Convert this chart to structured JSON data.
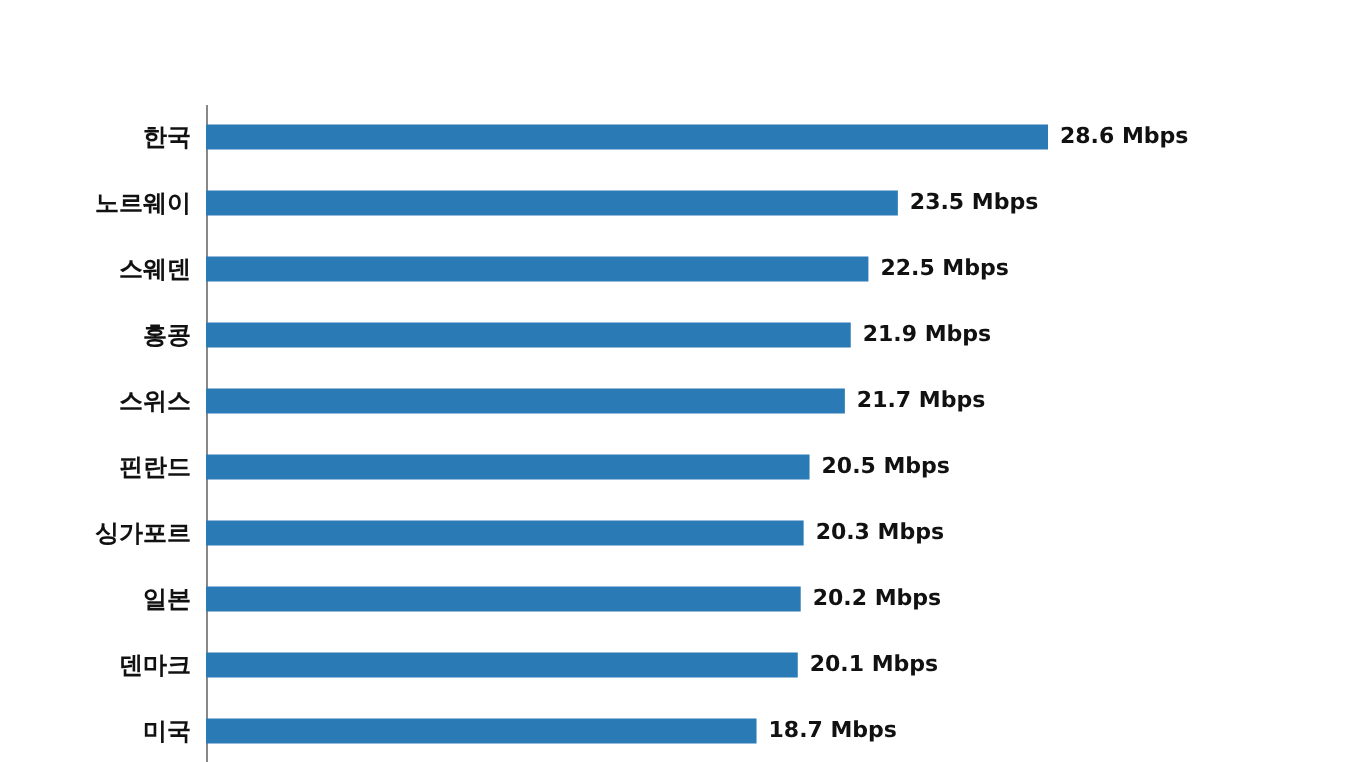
{
  "chart_data": {
    "type": "bar",
    "orientation": "horizontal",
    "categories": [
      "한국",
      "노르웨이",
      "스웨덴",
      "홍콩",
      "스위스",
      "핀란드",
      "싱가포르",
      "일본",
      "덴마크",
      "미국"
    ],
    "values": [
      28.6,
      23.5,
      22.5,
      21.9,
      21.7,
      20.5,
      20.3,
      20.2,
      20.1,
      18.7
    ],
    "value_labels": [
      "28.6 Mbps",
      "23.5 Mbps",
      "22.5 Mbps",
      "21.9 Mbps",
      "21.7 Mbps",
      "20.5 Mbps",
      "20.3 Mbps",
      "20.2 Mbps",
      "20.1 Mbps",
      "18.7 Mbps"
    ],
    "color": "#2a7ab5"
  }
}
